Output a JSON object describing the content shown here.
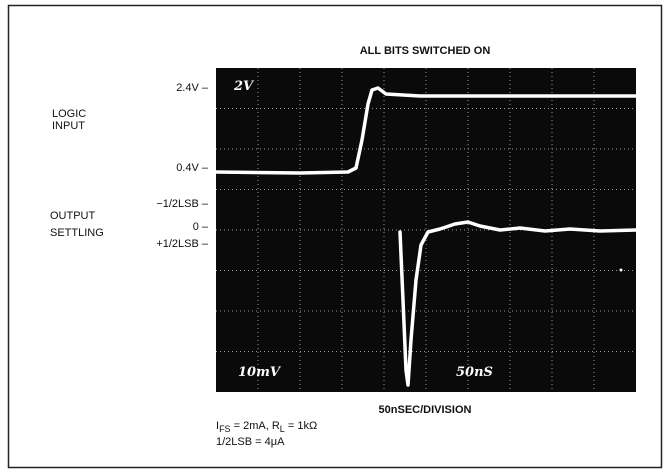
{
  "figure": {
    "title": "ALL BITS SWITCHED ON",
    "left_labels": {
      "logic_high": "2.4V –",
      "logic_input": [
        "LOGIC",
        "INPUT"
      ],
      "logic_low": "0.4V –",
      "output_settling": [
        "OUTPUT",
        "SETTLING"
      ],
      "minus_half_lsb": "−1/2LSB –",
      "zero": "0 –",
      "plus_half_lsb": "+1/2LSB –"
    },
    "scope_labels": {
      "top_scale": "2V",
      "bottom_scale": "10mV",
      "time_scale": "50nS"
    },
    "time_base": "50nSEC/DIVISION",
    "conditions": [
      "I",
      "FS",
      " = 2mA, R",
      "L",
      " = 1kΩ"
    ],
    "lsb_note": "1/2LSB = 4μA"
  }
}
